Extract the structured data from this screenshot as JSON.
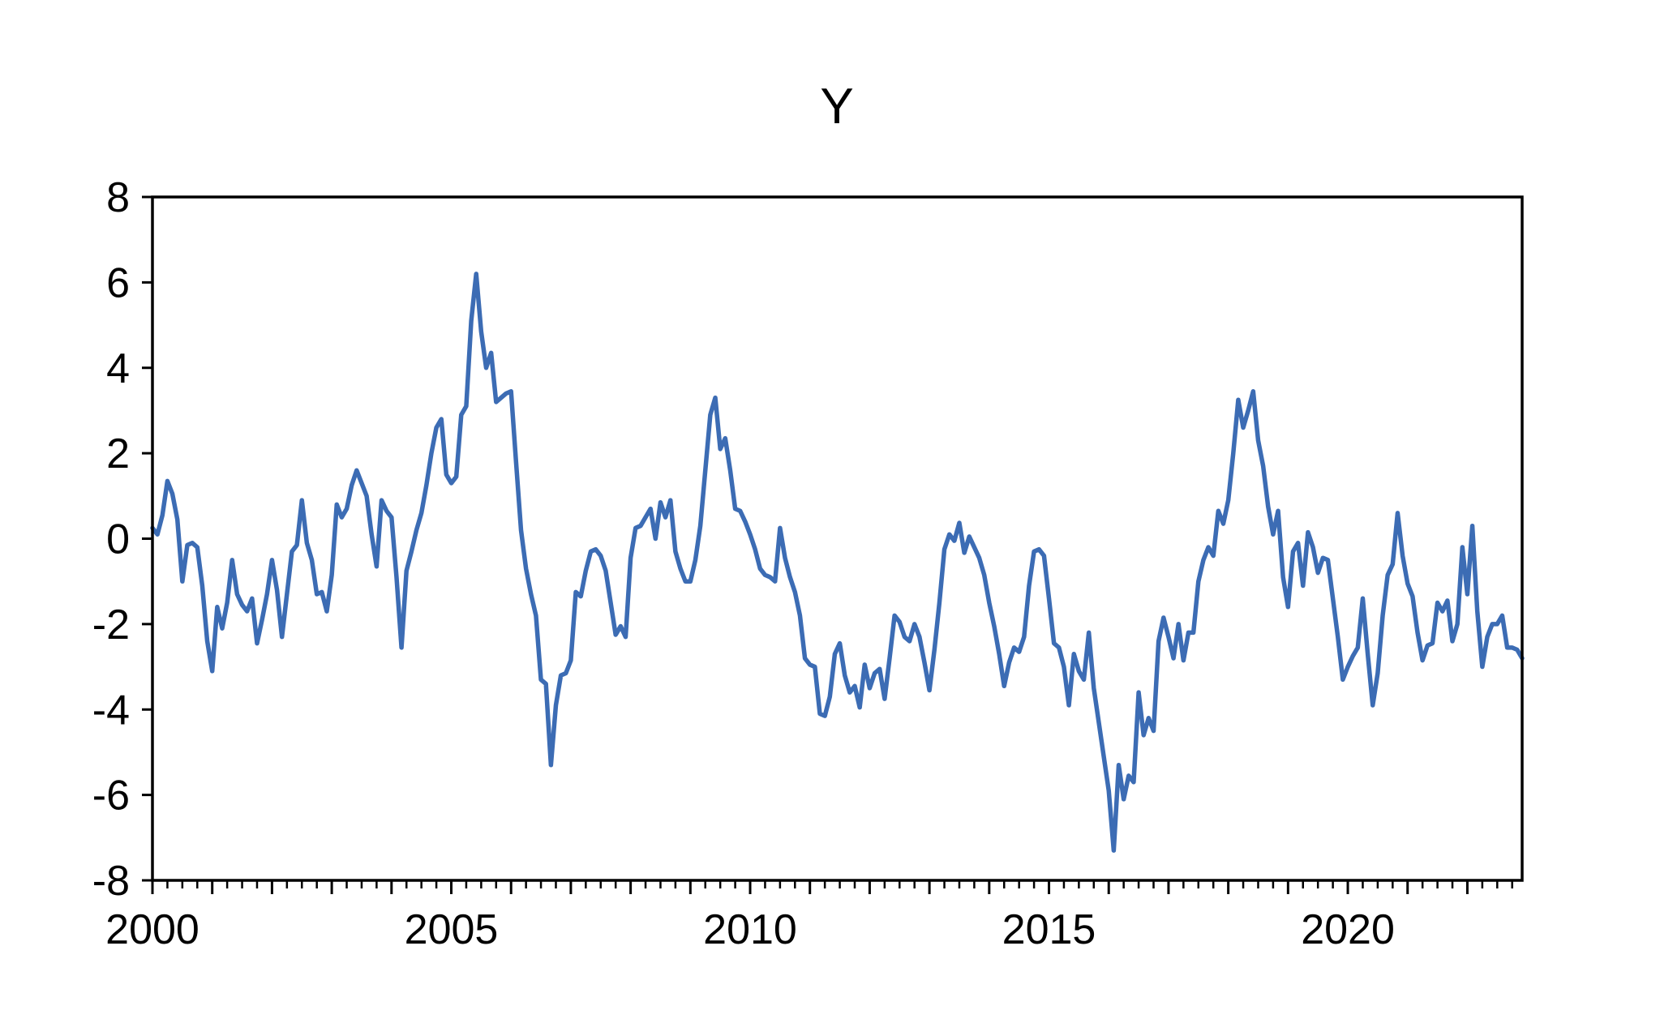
{
  "page": {
    "background": "#ffffff"
  },
  "chart_data": {
    "type": "line",
    "title": "Y",
    "series_name": "Y",
    "frequency": "monthly",
    "x_start": "2000M01",
    "x_end": "2022M12",
    "xlabel": "",
    "ylabel": "",
    "ylim": [
      -8,
      8
    ],
    "y_ticks": [
      8,
      6,
      4,
      2,
      0,
      -2,
      -4,
      -6,
      -8
    ],
    "x_tick_years": [
      2000,
      2005,
      2010,
      2015,
      2020
    ],
    "x_tick_labels": [
      "2000",
      "2005",
      "2010",
      "2015",
      "2020"
    ],
    "x_minor_ticks": "quarterly",
    "grid": "off",
    "legend": "none",
    "line_color": "#3c6cb4",
    "axis_color": "#000000",
    "values": [
      0.25,
      0.1,
      0.55,
      1.35,
      1.05,
      0.45,
      -1.0,
      -0.15,
      -0.1,
      -0.2,
      -1.1,
      -2.4,
      -3.1,
      -1.6,
      -2.1,
      -1.5,
      -0.5,
      -1.3,
      -1.55,
      -1.7,
      -1.4,
      -2.45,
      -1.9,
      -1.3,
      -0.5,
      -1.2,
      -2.3,
      -1.3,
      -0.3,
      -0.15,
      0.9,
      -0.1,
      -0.5,
      -1.3,
      -1.25,
      -1.7,
      -0.85,
      0.8,
      0.5,
      0.7,
      1.25,
      1.6,
      1.3,
      1.0,
      0.1,
      -0.65,
      0.9,
      0.65,
      0.5,
      -0.9,
      -2.55,
      -0.75,
      -0.3,
      0.2,
      0.6,
      1.25,
      2.0,
      2.6,
      2.8,
      1.5,
      1.3,
      1.45,
      2.9,
      3.1,
      5.1,
      6.2,
      4.85,
      4.0,
      4.35,
      3.2,
      3.3,
      3.4,
      3.45,
      1.8,
      0.2,
      -0.7,
      -1.3,
      -1.8,
      -3.3,
      -3.4,
      -5.3,
      -3.9,
      -3.2,
      -3.15,
      -2.85,
      -1.25,
      -1.35,
      -0.75,
      -0.3,
      -0.25,
      -0.4,
      -0.75,
      -1.5,
      -2.25,
      -2.05,
      -2.3,
      -0.45,
      0.25,
      0.3,
      0.5,
      0.7,
      0.0,
      0.85,
      0.5,
      0.9,
      -0.3,
      -0.7,
      -1.0,
      -1.0,
      -0.5,
      0.3,
      1.6,
      2.9,
      3.3,
      2.1,
      2.35,
      1.6,
      0.7,
      0.65,
      0.4,
      0.1,
      -0.25,
      -0.7,
      -0.85,
      -0.9,
      -1.0,
      0.25,
      -0.45,
      -0.9,
      -1.25,
      -1.8,
      -2.8,
      -2.95,
      -3.0,
      -4.1,
      -4.15,
      -3.7,
      -2.7,
      -2.45,
      -3.2,
      -3.6,
      -3.45,
      -3.95,
      -2.95,
      -3.5,
      -3.15,
      -3.05,
      -3.75,
      -2.8,
      -1.8,
      -1.95,
      -2.3,
      -2.4,
      -2.0,
      -2.3,
      -2.9,
      -3.55,
      -2.6,
      -1.5,
      -0.25,
      0.1,
      -0.05,
      0.37,
      -0.33,
      0.05,
      -0.2,
      -0.45,
      -0.85,
      -1.5,
      -2.05,
      -2.7,
      -3.45,
      -2.9,
      -2.55,
      -2.65,
      -2.3,
      -1.1,
      -0.3,
      -0.25,
      -0.4,
      -1.4,
      -2.45,
      -2.55,
      -3.0,
      -3.9,
      -2.7,
      -3.1,
      -3.3,
      -2.2,
      -3.5,
      -4.3,
      -5.1,
      -5.9,
      -7.3,
      -5.3,
      -6.1,
      -5.55,
      -5.7,
      -3.6,
      -4.6,
      -4.2,
      -4.5,
      -2.4,
      -1.85,
      -2.3,
      -2.8,
      -2.0,
      -2.85,
      -2.2,
      -2.2,
      -1.0,
      -0.5,
      -0.2,
      -0.4,
      0.65,
      0.35,
      0.9,
      2.0,
      3.25,
      2.6,
      3.0,
      3.45,
      2.3,
      1.7,
      0.75,
      0.1,
      0.65,
      -0.9,
      -1.6,
      -0.3,
      -0.1,
      -1.1,
      0.15,
      -0.2,
      -0.8,
      -0.45,
      -0.5,
      -1.4,
      -2.3,
      -3.3,
      -3.0,
      -2.75,
      -2.55,
      -1.4,
      -2.7,
      -3.9,
      -3.15,
      -1.8,
      -0.85,
      -0.6,
      0.6,
      -0.4,
      -1.05,
      -1.35,
      -2.2,
      -2.85,
      -2.5,
      -2.45,
      -1.5,
      -1.7,
      -1.45,
      -2.4,
      -2.0,
      -0.2,
      -1.3,
      0.3,
      -1.7,
      -3.0,
      -2.3,
      -2.0,
      -2.0,
      -1.8,
      -2.55,
      -2.55,
      -2.6,
      -2.8
    ]
  }
}
